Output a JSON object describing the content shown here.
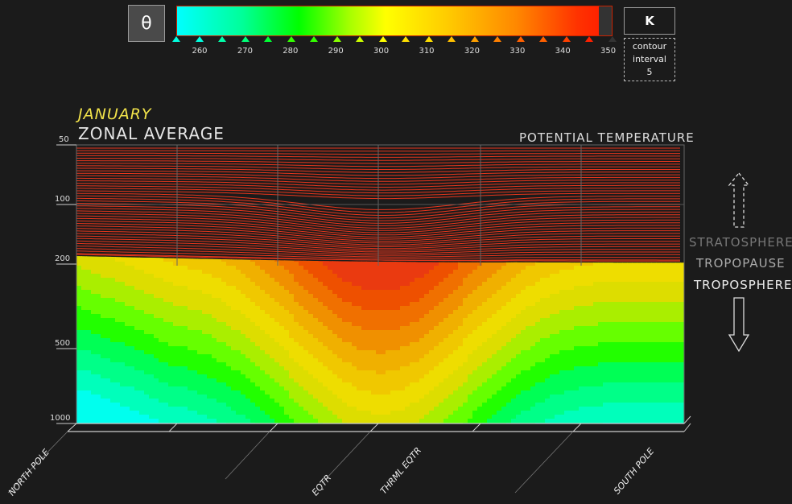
{
  "colorbar": {
    "symbol": "θ",
    "unit": "K",
    "contour_interval_label": "contour",
    "contour_interval_label2": "interval",
    "contour_interval_value": "5",
    "ticks": [
      "260",
      "270",
      "280",
      "290",
      "300",
      "310",
      "320",
      "330",
      "340",
      "350"
    ]
  },
  "titles": {
    "month": "JANUARY",
    "zonal": "ZONAL AVERAGE",
    "variable": "POTENTIAL TEMPERATURE"
  },
  "side_labels": {
    "stratosphere": "STRATOSPHERE",
    "tropopause": "TROPOPAUSE",
    "troposphere": "TROPOSPHERE"
  },
  "chart_data": {
    "type": "heatmap",
    "title": "POTENTIAL TEMPERATURE",
    "subtitle": "JANUARY ZONAL AVERAGE",
    "unit": "K",
    "contour_interval": 5,
    "colorbar_range": [
      255,
      350
    ],
    "y_ticks": [
      "50",
      "100",
      "200",
      "500",
      "1000"
    ],
    "y_scale": "log-pressure",
    "x_labels": [
      "NORTH POLE",
      "EQTR",
      "THRML EQTR",
      "SOUTH POLE"
    ],
    "stratosphere_contours": "red lines",
    "grid": true
  }
}
